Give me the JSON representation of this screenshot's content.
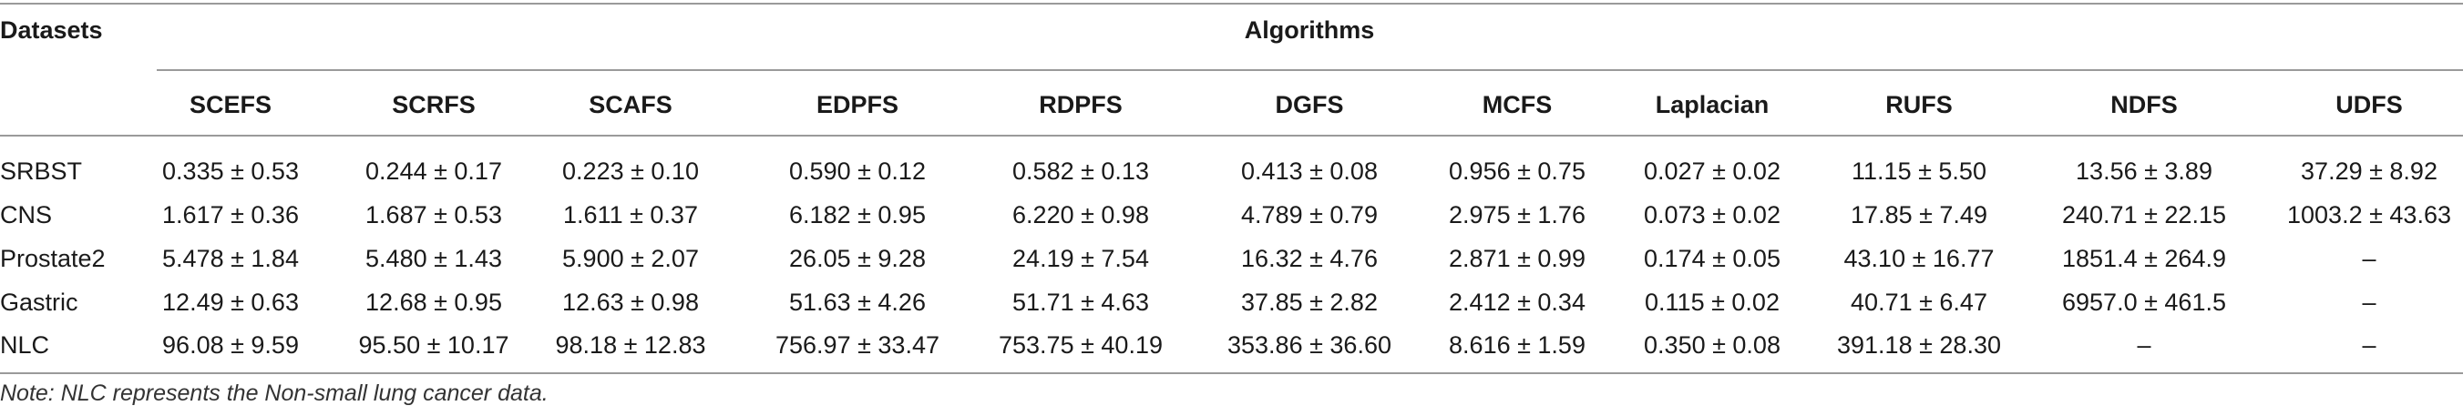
{
  "table": {
    "datasets_header": "Datasets",
    "algorithms_header": "Algorithms",
    "columns": [
      "SCEFS",
      "SCRFS",
      "SCAFS",
      "EDPFS",
      "RDPFS",
      "DGFS",
      "MCFS",
      "Laplacian",
      "RUFS",
      "NDFS",
      "UDFS"
    ],
    "rows": [
      {
        "dataset": "SRBST",
        "values": [
          "0.335 ± 0.53",
          "0.244 ± 0.17",
          "0.223 ± 0.10",
          "0.590 ± 0.12",
          "0.582 ± 0.13",
          "0.413 ± 0.08",
          "0.956 ± 0.75",
          "0.027 ± 0.02",
          "11.15 ± 5.50",
          "13.56 ± 3.89",
          "37.29 ± 8.92"
        ]
      },
      {
        "dataset": "CNS",
        "values": [
          "1.617 ± 0.36",
          "1.687 ± 0.53",
          "1.611 ± 0.37",
          "6.182 ± 0.95",
          "6.220 ± 0.98",
          "4.789 ± 0.79",
          "2.975 ± 1.76",
          "0.073 ± 0.02",
          "17.85 ± 7.49",
          "240.71 ± 22.15",
          "1003.2 ± 43.63"
        ]
      },
      {
        "dataset": "Prostate2",
        "values": [
          "5.478 ± 1.84",
          "5.480 ± 1.43",
          "5.900 ± 2.07",
          "26.05 ± 9.28",
          "24.19 ± 7.54",
          "16.32 ± 4.76",
          "2.871 ± 0.99",
          "0.174 ± 0.05",
          "43.10 ± 16.77",
          "1851.4 ± 264.9",
          "–"
        ]
      },
      {
        "dataset": "Gastric",
        "values": [
          "12.49 ± 0.63",
          "12.68 ± 0.95",
          "12.63 ± 0.98",
          "51.63 ± 4.26",
          "51.71 ± 4.63",
          "37.85 ± 2.82",
          "2.412 ± 0.34",
          "0.115 ± 0.02",
          "40.71 ± 6.47",
          "6957.0 ± 461.5",
          "–"
        ]
      },
      {
        "dataset": "NLC",
        "values": [
          "96.08 ± 9.59",
          "95.50 ± 10.17",
          "98.18 ± 12.83",
          "756.97 ± 33.47",
          "753.75 ± 40.19",
          "353.86 ± 36.60",
          "8.616 ± 1.59",
          "0.350 ± 0.08",
          "391.18 ± 28.30",
          "–",
          "–"
        ]
      }
    ]
  },
  "note": "Note: NLC represents the Non-small lung cancer data."
}
